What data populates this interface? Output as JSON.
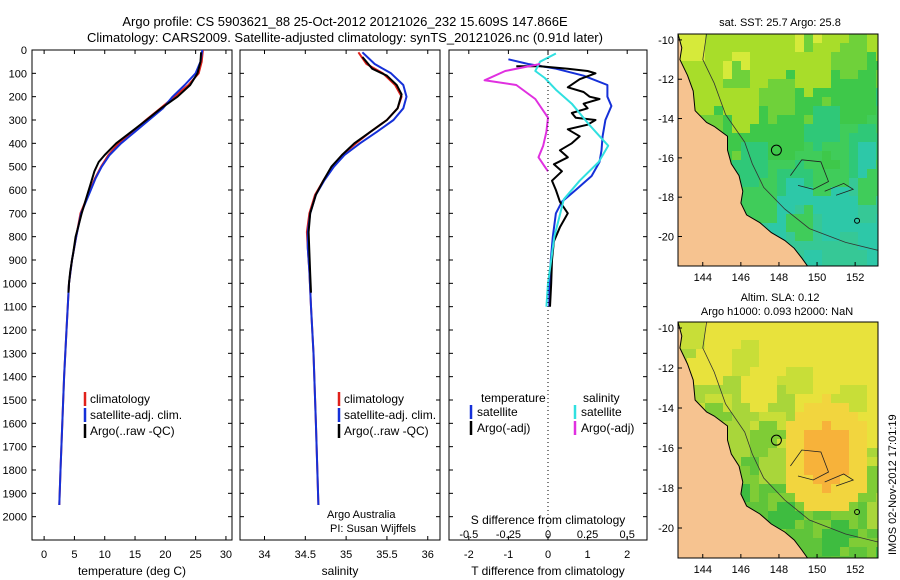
{
  "title_line1": "Argo profile: CS 5903621_88 25-Oct-2012 20121026_232 15.609S 147.866E",
  "title_line2": "Climatology: CARS2009. Satellite-adjusted climatology: synTS_20121026.nc (0.91d later)",
  "colors": {
    "climatology": "#e0201a",
    "satellite": "#1530d8",
    "argo": "#000000",
    "sal_sat": "#30e0e0",
    "sal_argo": "#e030e0",
    "land": "#f6c390"
  },
  "depth_axis": {
    "ticks": [
      "0",
      "100",
      "200",
      "300",
      "400",
      "500",
      "600",
      "700",
      "800",
      "900",
      "1000",
      "1100",
      "1200",
      "1300",
      "1400",
      "1500",
      "1600",
      "1700",
      "1800",
      "1900",
      "2000"
    ],
    "ylim": [
      0,
      2100
    ]
  },
  "chart_data": [
    {
      "type": "line",
      "id": "temperature",
      "xlabel": "temperature (deg C)",
      "xlim": [
        -2,
        31
      ],
      "xticks": [
        "0",
        "5",
        "10",
        "15",
        "20",
        "25",
        "30"
      ],
      "xtick_values": [
        0,
        5,
        10,
        15,
        20,
        25,
        30
      ],
      "ylim": [
        0,
        2100
      ],
      "legend": [
        "climatology",
        "satellite-adj. clim.",
        "Argo(..raw -QC)"
      ],
      "series": [
        {
          "name": "climatology",
          "color": "#e0201a",
          "points": [
            [
              26.2,
              0
            ],
            [
              26.0,
              50
            ],
            [
              25.5,
              100
            ],
            [
              23.8,
              150
            ],
            [
              21.5,
              200
            ],
            [
              19.2,
              250
            ],
            [
              16.8,
              300
            ],
            [
              14.6,
              350
            ],
            [
              12.3,
              400
            ],
            [
              10.6,
              450
            ],
            [
              9.4,
              500
            ],
            [
              8.4,
              550
            ],
            [
              7.6,
              600
            ],
            [
              6.8,
              650
            ],
            [
              6.0,
              700
            ],
            [
              5.3,
              800
            ],
            [
              4.6,
              900
            ],
            [
              4.1,
              1000
            ],
            [
              3.7,
              1200
            ],
            [
              3.3,
              1400
            ],
            [
              3.0,
              1600
            ],
            [
              2.7,
              1800
            ],
            [
              2.5,
              1950
            ]
          ]
        },
        {
          "name": "satellite-adj. clim.",
          "color": "#1530d8",
          "points": [
            [
              26.1,
              0
            ],
            [
              25.8,
              50
            ],
            [
              25.0,
              100
            ],
            [
              23.2,
              150
            ],
            [
              21.2,
              200
            ],
            [
              19.6,
              250
            ],
            [
              17.3,
              300
            ],
            [
              15.0,
              350
            ],
            [
              12.7,
              400
            ],
            [
              10.8,
              450
            ],
            [
              9.5,
              500
            ],
            [
              8.5,
              550
            ],
            [
              7.7,
              600
            ],
            [
              6.9,
              650
            ],
            [
              6.1,
              700
            ],
            [
              5.3,
              800
            ],
            [
              4.6,
              900
            ],
            [
              4.1,
              1000
            ],
            [
              3.7,
              1200
            ],
            [
              3.3,
              1400
            ],
            [
              3.0,
              1600
            ],
            [
              2.7,
              1800
            ],
            [
              2.5,
              1950
            ]
          ]
        },
        {
          "name": "Argo(..raw -QC)",
          "color": "#000000",
          "points": [
            [
              25.9,
              10
            ],
            [
              25.8,
              50
            ],
            [
              25.3,
              100
            ],
            [
              24.1,
              150
            ],
            [
              22.0,
              200
            ],
            [
              19.3,
              250
            ],
            [
              16.9,
              300
            ],
            [
              14.4,
              350
            ],
            [
              11.9,
              400
            ],
            [
              10.0,
              450
            ],
            [
              9.0,
              480
            ],
            [
              8.3,
              520
            ],
            [
              7.6,
              580
            ],
            [
              6.9,
              640
            ],
            [
              6.2,
              700
            ],
            [
              5.6,
              760
            ],
            [
              5.2,
              800
            ],
            [
              4.8,
              870
            ],
            [
              4.6,
              900
            ],
            [
              4.3,
              950
            ],
            [
              4.1,
              1000
            ],
            [
              4.0,
              1040
            ]
          ]
        }
      ]
    },
    {
      "type": "line",
      "id": "salinity",
      "xlabel": "salinity",
      "xlim": [
        33.7,
        36.15
      ],
      "xticks": [
        "34",
        "34.5",
        "35",
        "35.5",
        "36"
      ],
      "xtick_values": [
        34,
        34.5,
        35,
        35.5,
        36
      ],
      "ylim": [
        0,
        2100
      ],
      "legend": [
        "climatology",
        "satellite-adj. clim.",
        "Argo(..raw -QC)"
      ],
      "annotations": [
        "Argo Australia",
        "PI: Susan Wijffels"
      ],
      "series": [
        {
          "name": "climatology",
          "color": "#e0201a",
          "points": [
            [
              35.15,
              10
            ],
            [
              35.25,
              60
            ],
            [
              35.45,
              100
            ],
            [
              35.6,
              150
            ],
            [
              35.68,
              200
            ],
            [
              35.63,
              250
            ],
            [
              35.5,
              300
            ],
            [
              35.3,
              350
            ],
            [
              35.12,
              400
            ],
            [
              34.95,
              450
            ],
            [
              34.83,
              500
            ],
            [
              34.72,
              560
            ],
            [
              34.62,
              620
            ],
            [
              34.55,
              700
            ],
            [
              34.52,
              780
            ],
            [
              34.53,
              850
            ],
            [
              34.55,
              950
            ],
            [
              34.57,
              1100
            ],
            [
              34.6,
              1300
            ],
            [
              34.63,
              1600
            ],
            [
              34.66,
              1950
            ]
          ]
        },
        {
          "name": "satellite-adj. clim.",
          "color": "#1530d8",
          "points": [
            [
              35.2,
              10
            ],
            [
              35.35,
              60
            ],
            [
              35.55,
              100
            ],
            [
              35.7,
              150
            ],
            [
              35.74,
              200
            ],
            [
              35.7,
              250
            ],
            [
              35.58,
              300
            ],
            [
              35.38,
              350
            ],
            [
              35.17,
              400
            ],
            [
              34.98,
              450
            ],
            [
              34.85,
              500
            ],
            [
              34.73,
              560
            ],
            [
              34.63,
              620
            ],
            [
              34.56,
              700
            ],
            [
              34.53,
              780
            ],
            [
              34.53,
              850
            ],
            [
              34.55,
              950
            ],
            [
              34.57,
              1100
            ],
            [
              34.6,
              1300
            ],
            [
              34.63,
              1600
            ],
            [
              34.66,
              1950
            ]
          ]
        },
        {
          "name": "Argo(..raw -QC)",
          "color": "#000000",
          "points": [
            [
              35.2,
              30
            ],
            [
              35.32,
              80
            ],
            [
              35.5,
              110
            ],
            [
              35.62,
              150
            ],
            [
              35.68,
              190
            ],
            [
              35.63,
              250
            ],
            [
              35.5,
              300
            ],
            [
              35.3,
              350
            ],
            [
              35.1,
              400
            ],
            [
              34.95,
              450
            ],
            [
              34.82,
              500
            ],
            [
              34.72,
              560
            ],
            [
              34.63,
              620
            ],
            [
              34.56,
              700
            ],
            [
              34.54,
              780
            ],
            [
              34.55,
              870
            ],
            [
              34.56,
              960
            ],
            [
              34.57,
              1040
            ]
          ]
        }
      ]
    },
    {
      "type": "line",
      "id": "differences",
      "xlabel": "T difference from climatology",
      "xlabel_top": "S difference from climatology",
      "xlim": [
        -2.5,
        2.5
      ],
      "xticks": [
        "-2",
        "-1",
        "0",
        "1",
        "2"
      ],
      "xtick_values": [
        -2,
        -1,
        0,
        1,
        2
      ],
      "sticks": [
        "-0.5",
        "-0.25",
        "0",
        "0.25",
        "0.5"
      ],
      "stick_values": [
        -0.5,
        -0.25,
        0,
        0.25,
        0.5
      ],
      "ylim": [
        0,
        2100
      ],
      "legend_headers": [
        "temperature",
        "salinity"
      ],
      "legend": [
        "satellite",
        "Argo(-adj)",
        "satellite",
        "Argo(-adj)"
      ],
      "series": [
        {
          "name": "temperature satellite",
          "color": "#1530d8",
          "points": [
            [
              -1.0,
              40
            ],
            [
              -0.5,
              60
            ],
            [
              0.2,
              80
            ],
            [
              0.9,
              110
            ],
            [
              1.5,
              150
            ],
            [
              1.5,
              200
            ],
            [
              1.6,
              240
            ],
            [
              1.45,
              300
            ],
            [
              1.38,
              370
            ],
            [
              1.35,
              430
            ],
            [
              1.3,
              480
            ],
            [
              1.1,
              540
            ],
            [
              0.7,
              600
            ],
            [
              0.35,
              650
            ],
            [
              0.2,
              700
            ],
            [
              0.12,
              800
            ],
            [
              0.07,
              900
            ],
            [
              0.04,
              1000
            ],
            [
              0.03,
              1100
            ]
          ]
        },
        {
          "name": "temperature Argo(-adj)",
          "color": "#000000",
          "points": [
            [
              -0.8,
              70
            ],
            [
              -0.2,
              70
            ],
            [
              0.5,
              80
            ],
            [
              1.0,
              90
            ],
            [
              1.2,
              100
            ],
            [
              0.8,
              125
            ],
            [
              0.5,
              160
            ],
            [
              0.9,
              180
            ],
            [
              1.05,
              200
            ],
            [
              1.3,
              210
            ],
            [
              0.9,
              230
            ],
            [
              1.0,
              250
            ],
            [
              0.6,
              270
            ],
            [
              0.7,
              290
            ],
            [
              1.2,
              300
            ],
            [
              1.0,
              320
            ],
            [
              0.5,
              340
            ],
            [
              0.8,
              370
            ],
            [
              0.6,
              400
            ],
            [
              0.3,
              430
            ],
            [
              0.5,
              460
            ],
            [
              0.15,
              490
            ],
            [
              0.35,
              520
            ],
            [
              0.1,
              560
            ],
            [
              0.2,
              600
            ],
            [
              0.3,
              650
            ],
            [
              0.5,
              700
            ],
            [
              0.3,
              760
            ],
            [
              0.15,
              820
            ],
            [
              0.1,
              900
            ],
            [
              0.08,
              1000
            ],
            [
              0.05,
              1100
            ]
          ]
        },
        {
          "name": "salinity satellite",
          "color": "#30e0e0",
          "points": [
            [
              0.05,
              15
            ],
            [
              -0.05,
              50
            ],
            [
              -0.08,
              90
            ],
            [
              -0.02,
              120
            ],
            [
              0.05,
              170
            ],
            [
              0.15,
              230
            ],
            [
              0.26,
              320
            ],
            [
              0.38,
              410
            ],
            [
              0.32,
              480
            ],
            [
              0.2,
              560
            ],
            [
              0.1,
              640
            ],
            [
              0.07,
              720
            ],
            [
              0.04,
              800
            ],
            [
              0.02,
              900
            ],
            [
              0.0,
              1000
            ],
            [
              -0.01,
              1100
            ]
          ]
        },
        {
          "name": "salinity Argo(-adj)",
          "color": "#e030e0",
          "points": [
            [
              -0.05,
              60
            ],
            [
              -0.27,
              90
            ],
            [
              -0.4,
              130
            ],
            [
              -0.2,
              150
            ],
            [
              -0.08,
              210
            ],
            [
              0.0,
              290
            ],
            [
              -0.01,
              350
            ],
            [
              -0.03,
              410
            ],
            [
              -0.06,
              460
            ],
            [
              -0.02,
              500
            ],
            [
              0.0,
              520
            ]
          ]
        }
      ]
    },
    {
      "type": "heatmap",
      "id": "sst_map",
      "title": "sat. SST: 25.7 Argo: 25.8",
      "xticks": [
        "144",
        "146",
        "148",
        "150",
        "152"
      ],
      "xtick_values": [
        144,
        146,
        148,
        150,
        152
      ],
      "yticks": [
        "-10",
        "-12",
        "-14",
        "-16",
        "-18",
        "-20"
      ],
      "ytick_values": [
        -10,
        -12,
        -14,
        -16,
        -18,
        -20
      ],
      "xlim": [
        142.7,
        153.2
      ],
      "ylim": [
        -21.5,
        -9.7
      ],
      "argo_location": [
        147.866,
        -15.609
      ]
    },
    {
      "type": "heatmap",
      "id": "sla_map",
      "title_line1": "Altim. SLA: 0.12",
      "title_line2": "Argo h1000: 0.093 h2000: NaN",
      "xticks": [
        "144",
        "146",
        "148",
        "150",
        "152"
      ],
      "xtick_values": [
        144,
        146,
        148,
        150,
        152
      ],
      "yticks": [
        "-10",
        "-12",
        "-14",
        "-16",
        "-18",
        "-20"
      ],
      "ytick_values": [
        -10,
        -12,
        -14,
        -16,
        -18,
        -20
      ],
      "xlim": [
        142.7,
        153.2
      ],
      "ylim": [
        -21.5,
        -9.7
      ],
      "argo_location": [
        147.866,
        -15.609
      ]
    }
  ],
  "footer": "IMOS 02-Nov-2012 17:01:19"
}
